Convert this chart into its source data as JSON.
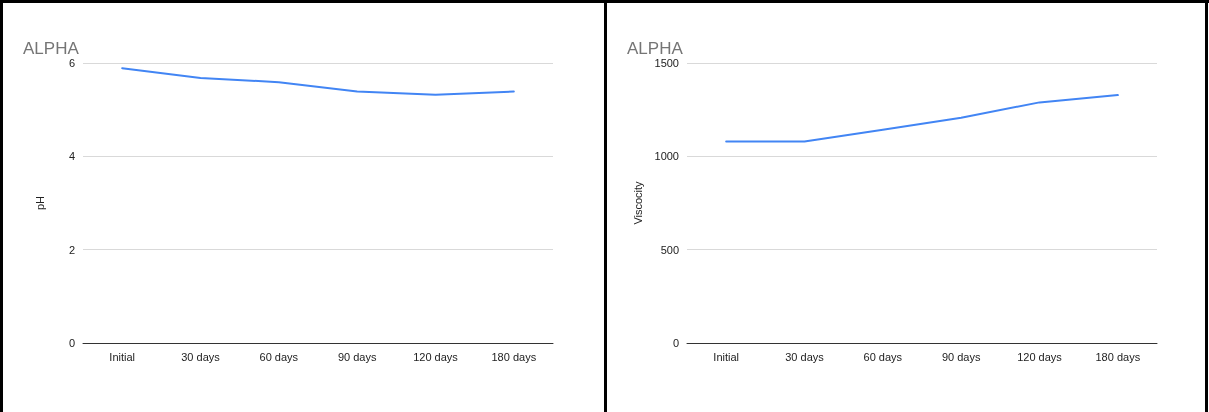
{
  "chart_data": [
    {
      "type": "line",
      "title": "ALPHA",
      "ylabel": "pH",
      "categories": [
        "Initial",
        "30 days",
        "60 days",
        "90 days",
        "120 days",
        "180 days"
      ],
      "series": [
        {
          "color": "#4285f4",
          "values": [
            5.89,
            5.68,
            5.59,
            5.39,
            5.32,
            5.39
          ]
        }
      ],
      "ylim": [
        0,
        6
      ],
      "yticks": [
        0,
        2,
        4,
        6
      ],
      "grid": "y",
      "marker": "none"
    },
    {
      "type": "line",
      "title": "ALPHA",
      "ylabel": "Viscocity",
      "categories": [
        "Initial",
        "30 days",
        "60 days",
        "90 days",
        "120 days",
        "180 days"
      ],
      "series": [
        {
          "color": "#4285f4",
          "values": [
            1080,
            1080,
            1143,
            1207,
            1289,
            1328
          ]
        }
      ],
      "ylim": [
        0,
        1500
      ],
      "yticks": [
        0,
        500,
        1000,
        1500
      ],
      "grid": "y",
      "marker": "none"
    }
  ]
}
